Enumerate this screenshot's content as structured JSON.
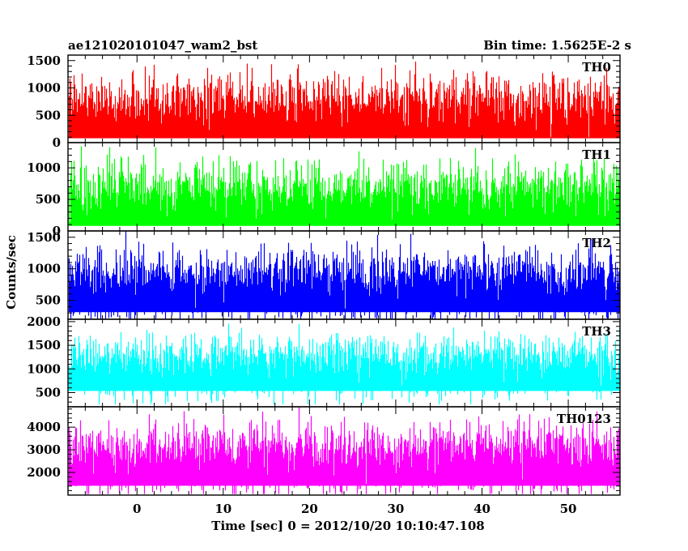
{
  "header": {
    "title": "ae121020101047_wam2_bst",
    "bin_time": "Bin time: 1.5625E-2 s"
  },
  "chart_data": {
    "type": "line",
    "title": "ae121020101047_wam2_bst",
    "xlabel": "Time [sec] 0 = 2012/10/20 10:10:47.108",
    "ylabel": "Counts/sec",
    "xlim": [
      -8,
      56
    ],
    "x_ticks": [
      0,
      10,
      20,
      30,
      40,
      50
    ],
    "x_tick_labels": [
      "0",
      "10",
      "20",
      "30",
      "40",
      "50"
    ],
    "data_x_range": [
      -7.9,
      55.9
    ],
    "grid": false,
    "panels": [
      {
        "name": "TH0",
        "color": "#ff0000",
        "ylim": [
          0,
          1600
        ],
        "y_ticks": [
          0,
          500,
          1000,
          1500
        ],
        "y_tick_labels": [
          "0",
          "500",
          "1000",
          "1500"
        ],
        "mean": 560,
        "min": 80,
        "max": 1600
      },
      {
        "name": "TH1",
        "color": "#00ff00",
        "ylim": [
          0,
          1400
        ],
        "y_ticks": [
          0,
          500,
          1000
        ],
        "y_tick_labels": [
          "0",
          "500",
          "1000"
        ],
        "mean": 500,
        "min": 80,
        "max": 1400
      },
      {
        "name": "TH2",
        "color": "#0000ff",
        "ylim": [
          200,
          1600
        ],
        "y_ticks": [
          500,
          1000,
          1500
        ],
        "y_tick_labels": [
          "500",
          "1000",
          "1500"
        ],
        "mean": 750,
        "min": 210,
        "max": 1600
      },
      {
        "name": "TH3",
        "color": "#00ffff",
        "ylim": [
          200,
          2050
        ],
        "y_ticks": [
          500,
          1000,
          1500,
          2000
        ],
        "y_tick_labels": [
          "500",
          "1000",
          "1500",
          "2000"
        ],
        "mean": 1050,
        "min": 250,
        "max": 2050
      },
      {
        "name": "TH0123",
        "color": "#ff00ff",
        "ylim": [
          1000,
          4900
        ],
        "y_ticks": [
          2000,
          3000,
          4000
        ],
        "y_tick_labels": [
          "2000",
          "3000",
          "4000"
        ],
        "mean": 2600,
        "min": 1050,
        "max": 4900
      }
    ]
  }
}
